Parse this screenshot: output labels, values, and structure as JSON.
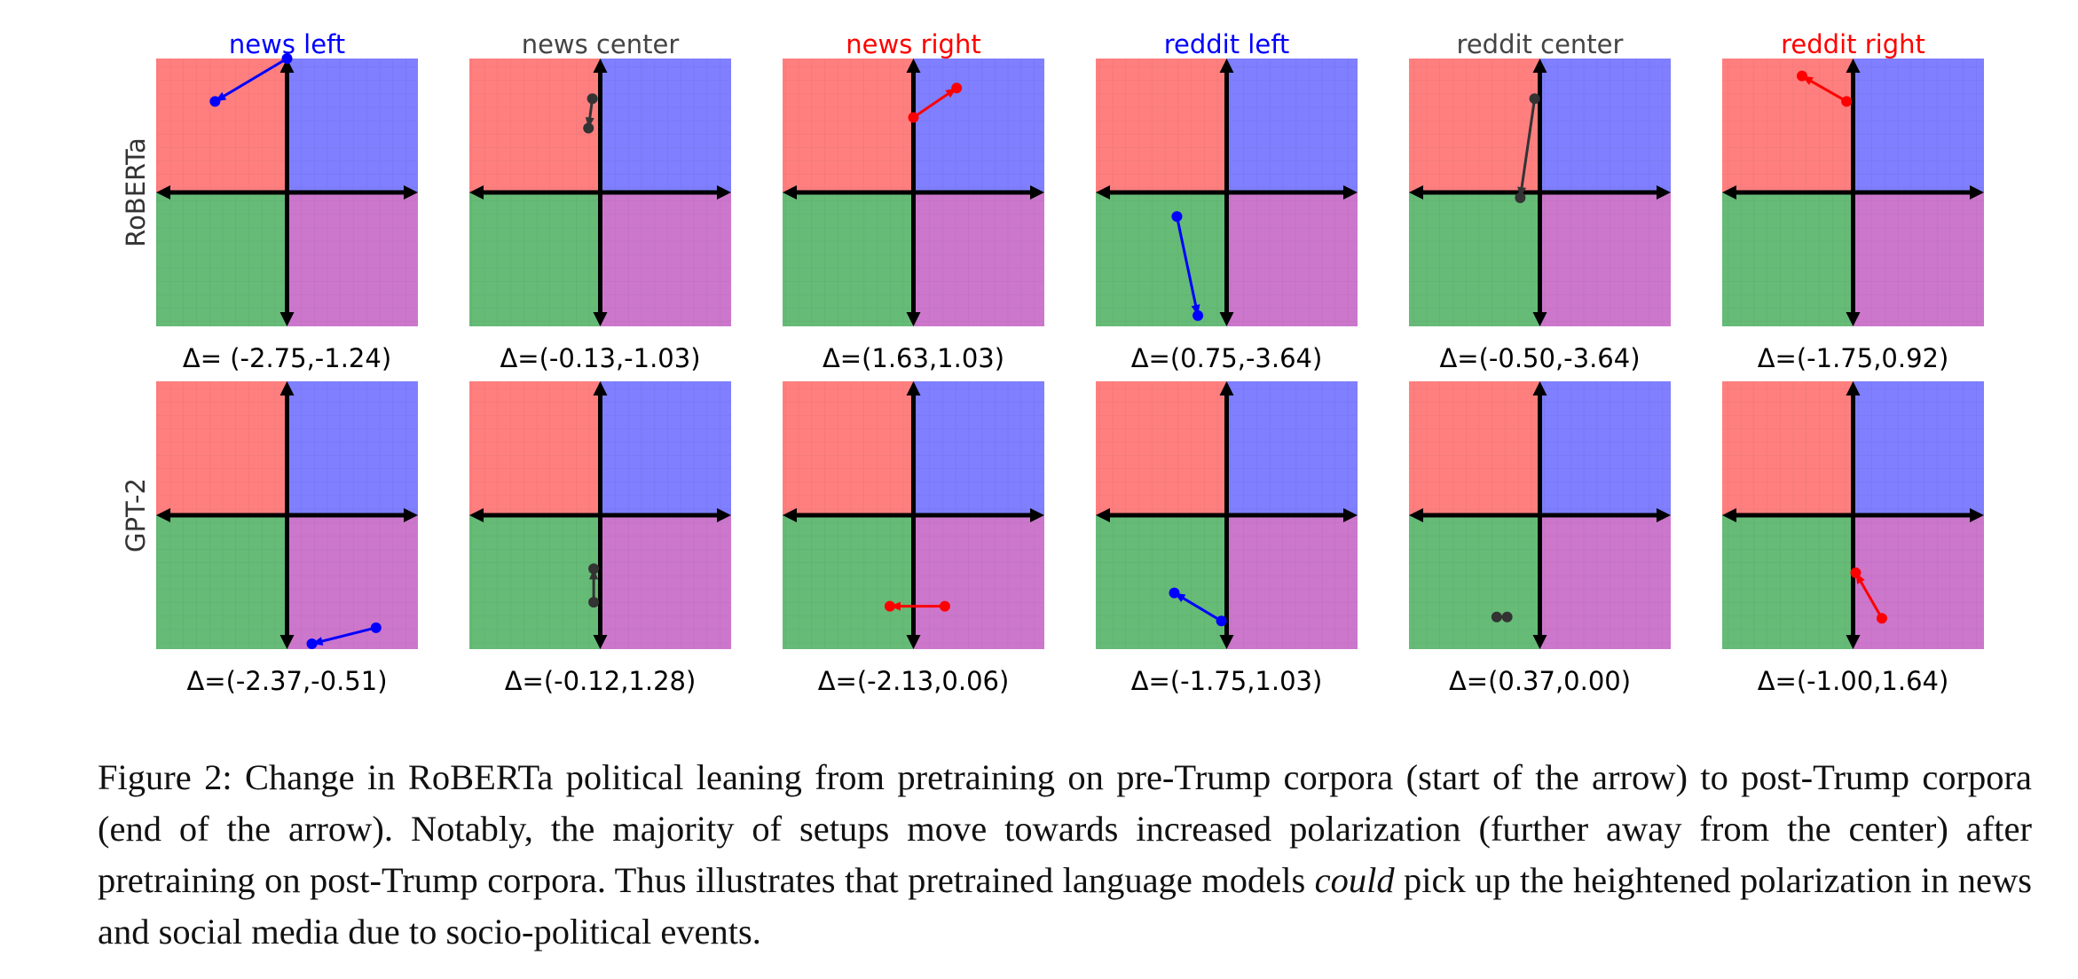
{
  "chart_data": {
    "type": "scatter",
    "description_type": "grid of political-compass quadrant plots with arrows",
    "row_labels": [
      "RoBERTa",
      "GPT-2"
    ],
    "column_titles": [
      {
        "text": "news left",
        "color": "#0000ff"
      },
      {
        "text": "news center",
        "color": "#444444"
      },
      {
        "text": "news right",
        "color": "#ff0000"
      },
      {
        "text": "reddit left",
        "color": "#0000ff"
      },
      {
        "text": "reddit center",
        "color": "#444444"
      },
      {
        "text": "reddit right",
        "color": "#ff0000"
      }
    ],
    "xlim": [
      -10,
      10
    ],
    "ylim": [
      -10,
      10
    ],
    "quadrant_colors": {
      "top_left": "#ff7f7f",
      "top_right": "#7f7fff",
      "bottom_left": "#66bb77",
      "bottom_right": "#cc77cc"
    },
    "panels": [
      {
        "row": 0,
        "col": 0,
        "start": [
          0,
          10
        ],
        "end": [
          -5.5,
          6.8
        ],
        "color": "#0000ff",
        "delta": "Δ= (-2.75,-1.24)"
      },
      {
        "row": 0,
        "col": 1,
        "start": [
          -0.6,
          7.0
        ],
        "end": [
          -0.9,
          4.8
        ],
        "color": "#333333",
        "delta": "Δ=(-0.13,-1.03)"
      },
      {
        "row": 0,
        "col": 2,
        "start": [
          0,
          5.6
        ],
        "end": [
          3.3,
          7.8
        ],
        "color": "#ff0000",
        "delta": "Δ=(1.63,1.03)"
      },
      {
        "row": 0,
        "col": 3,
        "start": [
          -3.8,
          -1.8
        ],
        "end": [
          -2.2,
          -9.2
        ],
        "color": "#0000ff",
        "delta": "Δ=(0.75,-3.64)"
      },
      {
        "row": 0,
        "col": 4,
        "start": [
          -0.4,
          7.0
        ],
        "end": [
          -1.5,
          -0.4
        ],
        "color": "#333333",
        "delta": "Δ=(-0.50,-3.64)"
      },
      {
        "row": 0,
        "col": 5,
        "start": [
          -0.5,
          6.8
        ],
        "end": [
          -3.9,
          8.7
        ],
        "color": "#ff0000",
        "delta": "Δ=(-1.75,0.92)"
      },
      {
        "row": 1,
        "col": 0,
        "start": [
          6.8,
          -8.4
        ],
        "end": [
          1.9,
          -9.6
        ],
        "color": "#0000ff",
        "delta": "Δ=(-2.37,-0.51)"
      },
      {
        "row": 1,
        "col": 1,
        "start": [
          -0.5,
          -6.5
        ],
        "end": [
          -0.5,
          -4.0
        ],
        "color": "#333333",
        "delta": "Δ=(-0.12,1.28)"
      },
      {
        "row": 1,
        "col": 2,
        "start": [
          2.4,
          -6.8
        ],
        "end": [
          -1.8,
          -6.8
        ],
        "color": "#ff0000",
        "delta": "Δ=(-2.13,0.06)"
      },
      {
        "row": 1,
        "col": 3,
        "start": [
          -0.4,
          -7.9
        ],
        "end": [
          -4.0,
          -5.8
        ],
        "color": "#0000ff",
        "delta": "Δ=(-1.75,1.03)"
      },
      {
        "row": 1,
        "col": 4,
        "start": [
          -3.3,
          -7.6
        ],
        "end": [
          -2.5,
          -7.6
        ],
        "color": "#333333",
        "delta": "Δ=(0.37,0.00)"
      },
      {
        "row": 1,
        "col": 5,
        "start": [
          2.2,
          -7.7
        ],
        "end": [
          0.2,
          -4.3
        ],
        "color": "#ff0000",
        "delta": "Δ=(-1.00,1.64)"
      }
    ]
  },
  "caption": {
    "label": "Figure 2:",
    "text_before_italic": "Change in RoBERTa political leaning from pretraining on pre-Trump corpora (start of the arrow) to post-Trump corpora (end of the arrow). Notably, the majority of setups move towards increased polarization (further away from the center) after pretraining on post-Trump corpora. Thus illustrates that pretrained language models",
    "italic": "could",
    "text_after_italic": "pick up the heightened polarization in news and social media due to socio-political events."
  }
}
